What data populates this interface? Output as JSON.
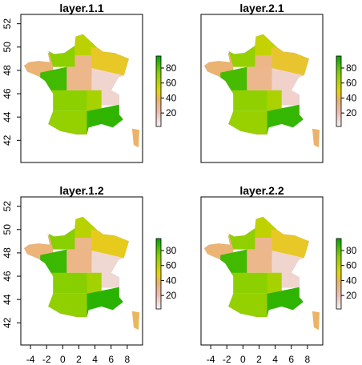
{
  "chart_data": [
    {
      "type": "map",
      "title": "layer.1.1",
      "xlim": [
        -5.2,
        9.9
      ],
      "ylim": [
        40.1,
        52.8
      ],
      "yticks": [
        42,
        44,
        46,
        48,
        50,
        52
      ],
      "values": [
        35,
        72,
        60,
        45,
        30,
        85,
        30,
        12,
        72,
        70,
        65,
        88,
        38
      ],
      "legend": {
        "lim": [
          2,
          96
        ],
        "ticks": [
          20,
          40,
          60,
          80
        ]
      }
    },
    {
      "type": "map",
      "title": "layer.2.1",
      "xlim": [
        -5.2,
        9.9
      ],
      "ylim": [
        40.1,
        52.8
      ],
      "values": [
        36,
        70,
        58,
        44,
        31,
        84,
        29,
        13,
        71,
        69,
        64,
        87,
        37
      ],
      "legend": {
        "lim": [
          2,
          96
        ],
        "ticks": [
          20,
          40,
          60,
          80
        ]
      }
    },
    {
      "type": "map",
      "title": "layer.1.2",
      "xlim": [
        -5.2,
        9.9
      ],
      "ylim": [
        40.1,
        52.8
      ],
      "xticks": [
        -4,
        -2,
        0,
        2,
        4,
        6,
        8
      ],
      "yticks": [
        42,
        44,
        46,
        48,
        50,
        52
      ],
      "values": [
        34,
        73,
        61,
        46,
        30,
        86,
        31,
        11,
        73,
        71,
        66,
        89,
        39
      ],
      "legend": {
        "lim": [
          2,
          96
        ],
        "ticks": [
          20,
          40,
          60,
          80
        ]
      }
    },
    {
      "type": "map",
      "title": "layer.2.2",
      "xlim": [
        -5.2,
        9.9
      ],
      "ylim": [
        40.1,
        52.8
      ],
      "xticks": [
        -4,
        -2,
        0,
        2,
        4,
        6,
        8
      ],
      "values": [
        35,
        71,
        59,
        45,
        29,
        85,
        30,
        12,
        72,
        70,
        65,
        88,
        38
      ],
      "legend": {
        "lim": [
          2,
          96
        ],
        "ticks": [
          20,
          40,
          60,
          80
        ]
      }
    }
  ]
}
